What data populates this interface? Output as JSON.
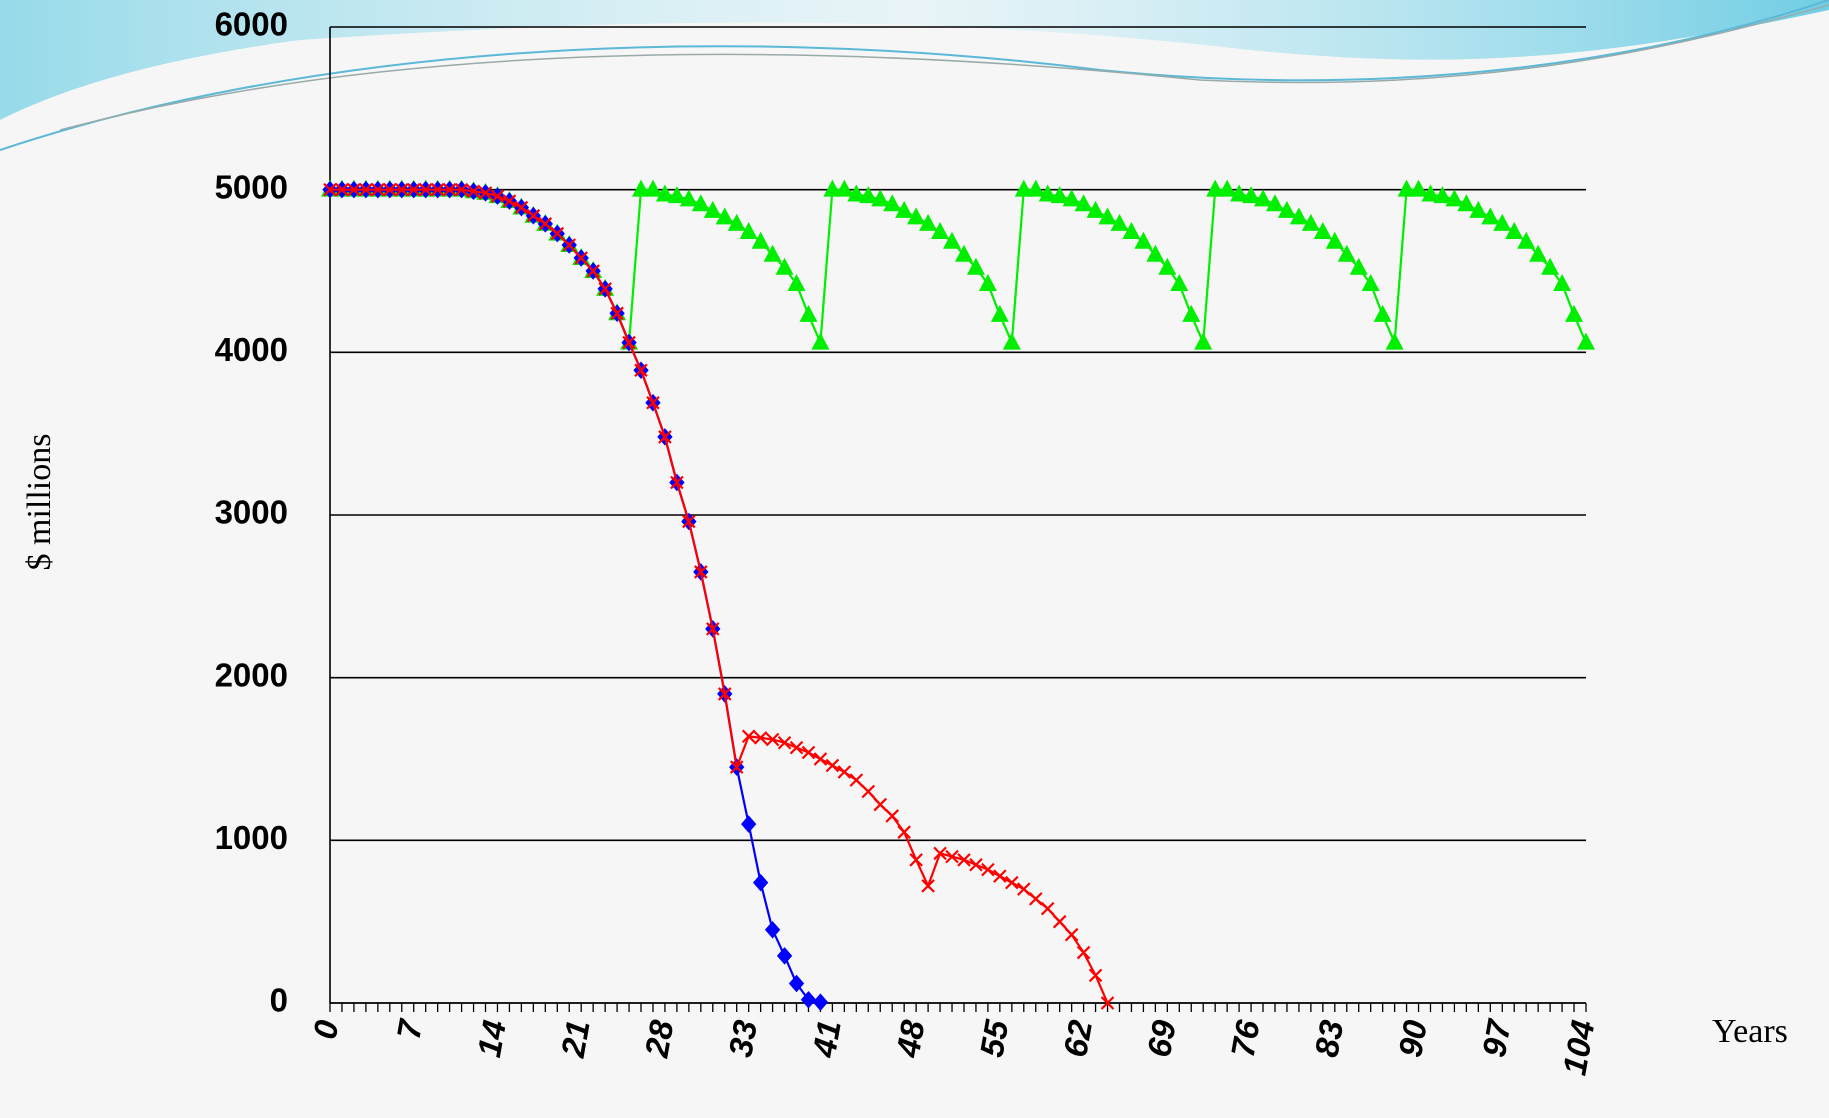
{
  "chart_data": {
    "type": "line",
    "y_label": "$ millions",
    "x_label": "Years",
    "categories": [
      "0",
      null,
      null,
      null,
      null,
      null,
      null,
      "7",
      null,
      null,
      null,
      null,
      null,
      null,
      "14",
      null,
      null,
      null,
      null,
      null,
      null,
      "21",
      null,
      null,
      null,
      null,
      null,
      null,
      "28",
      null,
      null,
      null,
      null,
      null,
      null,
      "33",
      null,
      null,
      null,
      null,
      null,
      null,
      "41",
      null,
      null,
      null,
      null,
      null,
      null,
      "48",
      null,
      null,
      null,
      null,
      null,
      null,
      "55",
      null,
      null,
      null,
      null,
      null,
      null,
      "62",
      null,
      null,
      null,
      null,
      null,
      null,
      "69",
      null,
      null,
      null,
      null,
      null,
      null,
      "76",
      null,
      null,
      null,
      null,
      null,
      null,
      "83",
      null,
      null,
      null,
      null,
      null,
      null,
      "90",
      null,
      null,
      null,
      null,
      null,
      null,
      "97",
      null,
      null,
      null,
      null,
      null,
      null,
      "104"
    ],
    "ylim": [
      0,
      6000
    ],
    "yticks": [
      0,
      1000,
      2000,
      3000,
      4000,
      5000,
      6000
    ],
    "grid": true,
    "series": [
      {
        "color": "#00ee00",
        "marker": "triangle",
        "values": [
          5000,
          5000,
          5000,
          5000,
          5000,
          5000,
          5000,
          5000,
          5000,
          5000,
          5000,
          5000,
          4990,
          4980,
          4960,
          4930,
          4890,
          4840,
          4790,
          4730,
          4660,
          4580,
          4500,
          4390,
          4240,
          4060,
          5000,
          5000,
          4970,
          4960,
          4940,
          4910,
          4870,
          4830,
          4790,
          4740,
          4680,
          4600,
          4520,
          4420,
          4230,
          4060,
          5000,
          5000,
          4970,
          4960,
          4940,
          4910,
          4870,
          4830,
          4790,
          4740,
          4680,
          4600,
          4520,
          4420,
          4230,
          4060,
          5000,
          5000,
          4970,
          4960,
          4940,
          4910,
          4870,
          4830,
          4790,
          4740,
          4680,
          4600,
          4520,
          4420,
          4230,
          4060,
          5000,
          5000,
          4970,
          4960,
          4940,
          4910,
          4870,
          4830,
          4790,
          4740,
          4680,
          4600,
          4520,
          4420,
          4230,
          4060,
          5000,
          5000,
          4970,
          4960,
          4940,
          4910,
          4870,
          4830,
          4790,
          4740,
          4680,
          4600,
          4520,
          4420,
          4230,
          4060
        ]
      },
      {
        "color": "#0000ff",
        "marker": "diamond",
        "values": [
          5000,
          5000,
          5000,
          5000,
          5000,
          5000,
          5000,
          5000,
          5000,
          5000,
          5000,
          5000,
          4990,
          4980,
          4960,
          4930,
          4890,
          4840,
          4790,
          4730,
          4660,
          4580,
          4500,
          4390,
          4240,
          4060,
          3890,
          3690,
          3480,
          3200,
          2960,
          2650,
          2300,
          1900,
          1450,
          1100,
          740,
          450,
          290,
          120,
          20,
          5,
          null,
          null,
          null,
          null,
          null,
          null,
          null,
          null,
          null,
          null,
          null,
          null,
          null,
          null,
          null,
          null,
          null,
          null,
          null,
          null,
          null,
          null,
          null,
          null,
          null,
          null,
          null,
          null,
          null,
          null,
          null,
          null,
          null,
          null,
          null,
          null,
          null,
          null,
          null,
          null,
          null,
          null,
          null,
          null,
          null,
          null,
          null,
          null,
          null,
          null,
          null,
          null,
          null,
          null,
          null,
          null,
          null,
          null,
          null,
          null,
          null,
          null,
          null,
          null
        ]
      },
      {
        "color": "#ff0000",
        "marker": "x",
        "values": [
          5000,
          5000,
          5000,
          5000,
          5000,
          5000,
          5000,
          5000,
          5000,
          5000,
          5000,
          5000,
          4990,
          4980,
          4960,
          4930,
          4890,
          4840,
          4790,
          4730,
          4660,
          4580,
          4500,
          4390,
          4240,
          4060,
          3890,
          3690,
          3480,
          3200,
          2960,
          2650,
          2300,
          1900,
          1450,
          1640,
          1630,
          1620,
          1600,
          1570,
          1540,
          1500,
          1460,
          1420,
          1370,
          1300,
          1220,
          1150,
          1050,
          880,
          720,
          920,
          900,
          880,
          850,
          820,
          780,
          740,
          700,
          640,
          580,
          500,
          420,
          310,
          170,
          0,
          null,
          null,
          null,
          null,
          null,
          null,
          null,
          null,
          null,
          null,
          null,
          null,
          null,
          null,
          null,
          null,
          null,
          null,
          null,
          null,
          null,
          null,
          null,
          null,
          null,
          null,
          null,
          null,
          null,
          null,
          null,
          null,
          null,
          null,
          null,
          null,
          null,
          null,
          null,
          null
        ]
      }
    ]
  }
}
